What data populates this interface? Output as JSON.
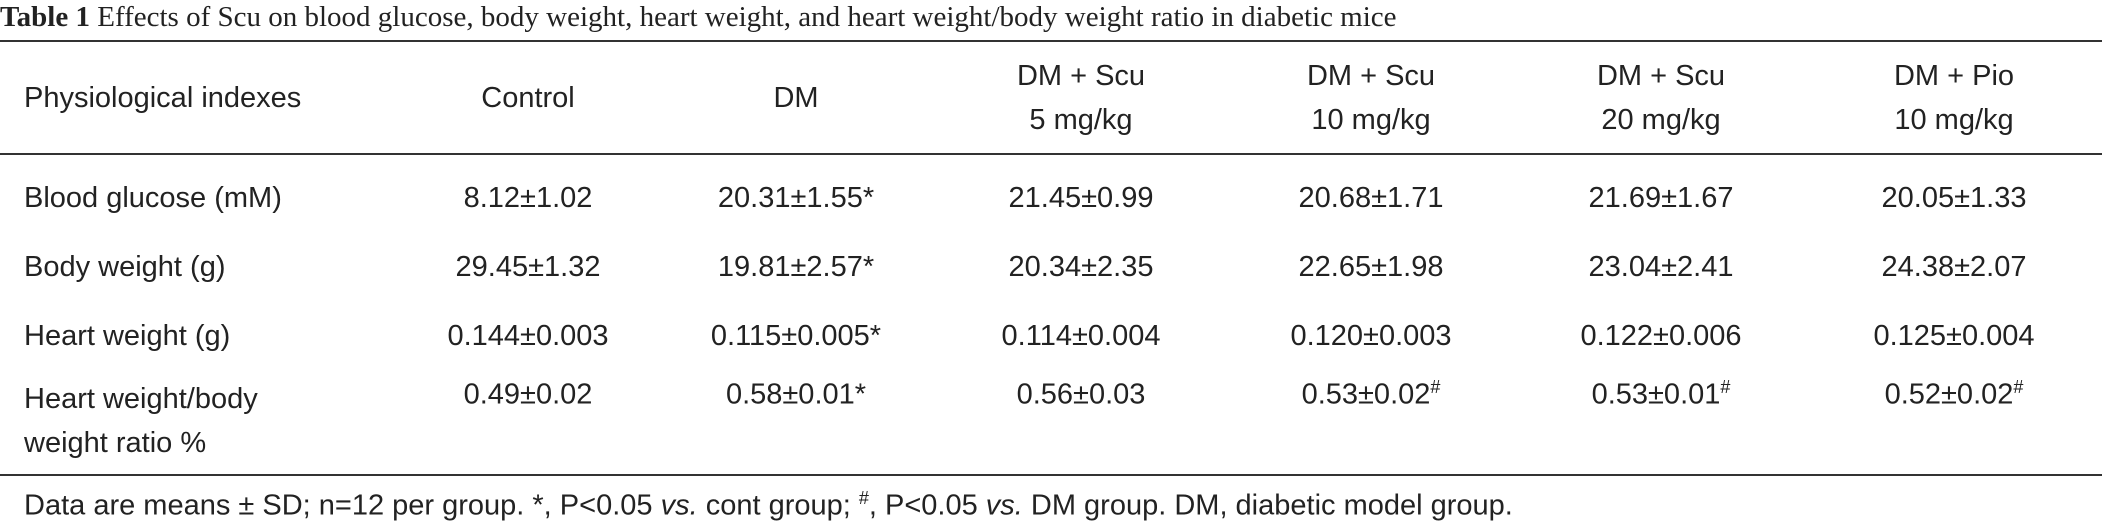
{
  "caption": {
    "number": "Table 1",
    "text": "Effects of Scu on blood glucose, body weight, heart weight, and heart weight/body weight ratio in diabetic mice"
  },
  "columns": [
    {
      "line1": "Physiological indexes",
      "line2": ""
    },
    {
      "line1": "Control",
      "line2": ""
    },
    {
      "line1": "DM",
      "line2": ""
    },
    {
      "line1": "DM + Scu",
      "line2": "5 mg/kg"
    },
    {
      "line1": "DM + Scu",
      "line2": "10 mg/kg"
    },
    {
      "line1": "DM + Scu",
      "line2": "20 mg/kg"
    },
    {
      "line1": "DM + Pio",
      "line2": "10 mg/kg"
    }
  ],
  "rows": [
    {
      "label": "Blood glucose (mM)",
      "cells": [
        {
          "value": "8.12±1.02",
          "mark": ""
        },
        {
          "value": "20.31±1.55*",
          "mark": ""
        },
        {
          "value": "21.45±0.99",
          "mark": ""
        },
        {
          "value": "20.68±1.71",
          "mark": ""
        },
        {
          "value": "21.69±1.67",
          "mark": ""
        },
        {
          "value": "20.05±1.33",
          "mark": ""
        }
      ]
    },
    {
      "label": "Body weight (g)",
      "cells": [
        {
          "value": "29.45±1.32",
          "mark": ""
        },
        {
          "value": "19.81±2.57*",
          "mark": ""
        },
        {
          "value": "20.34±2.35",
          "mark": ""
        },
        {
          "value": "22.65±1.98",
          "mark": ""
        },
        {
          "value": "23.04±2.41",
          "mark": ""
        },
        {
          "value": "24.38±2.07",
          "mark": ""
        }
      ]
    },
    {
      "label": "Heart weight (g)",
      "cells": [
        {
          "value": "0.144±0.003",
          "mark": ""
        },
        {
          "value": "0.115±0.005*",
          "mark": ""
        },
        {
          "value": "0.114±0.004",
          "mark": ""
        },
        {
          "value": "0.120±0.003",
          "mark": ""
        },
        {
          "value": "0.122±0.006",
          "mark": ""
        },
        {
          "value": "0.125±0.004",
          "mark": ""
        }
      ]
    },
    {
      "label_line1": "Heart weight/body",
      "label_line2": "weight ratio %",
      "cells": [
        {
          "value": "0.49±0.02",
          "mark": ""
        },
        {
          "value": "0.58±0.01*",
          "mark": ""
        },
        {
          "value": "0.56±0.03",
          "mark": ""
        },
        {
          "value": "0.53±0.02",
          "mark": "#"
        },
        {
          "value": "0.53±0.01",
          "mark": "#"
        },
        {
          "value": "0.52±0.02",
          "mark": "#"
        }
      ]
    }
  ],
  "footnote": {
    "p1": "Data are means ± SD; n=12 per group. *, P<0.05 ",
    "vs1": "vs.",
    "p2": " cont group; ",
    "mark": "#",
    "p3": ", P<0.05 ",
    "vs2": "vs.",
    "p4": " DM group. DM, diabetic model group."
  }
}
